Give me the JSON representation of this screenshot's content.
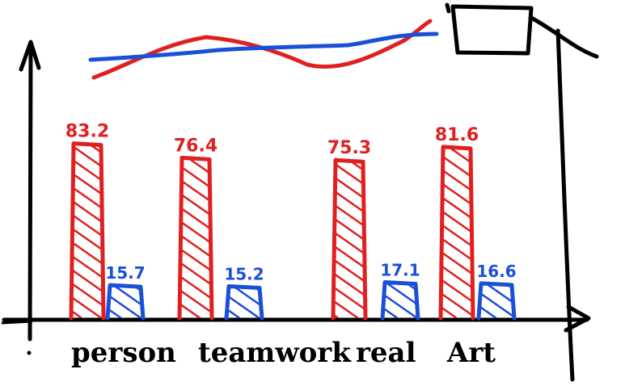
{
  "chart_data": {
    "type": "bar",
    "style": "hand-drawn sketch",
    "categories": [
      "person",
      "teamwork",
      "real",
      "Art"
    ],
    "series": [
      {
        "values": [
          83.2,
          76.4,
          75.3,
          81.6
        ],
        "color": "#e02020",
        "fill": "hatched"
      },
      {
        "values": [
          15.7,
          15.2,
          17.1,
          16.6
        ],
        "color": "#1a4fd8",
        "fill": "hatched"
      }
    ],
    "data_labels": {
      "red": [
        "83.2",
        "76.4",
        "75.3",
        "81.6"
      ],
      "blue": [
        "15.7",
        "15.2",
        "17.1",
        "16.6"
      ]
    },
    "overlay_lines": [
      {
        "color": "#e02020",
        "trend": "wave rising"
      },
      {
        "color": "#1a4fd8",
        "trend": "gently rising"
      }
    ],
    "legend": {
      "placement": "top-right",
      "entries": []
    },
    "title": "",
    "xlabel": "",
    "ylabel": "",
    "grid": false
  }
}
